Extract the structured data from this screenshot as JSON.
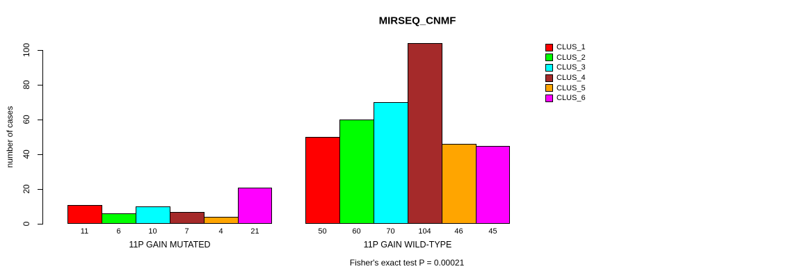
{
  "title": "MIRSEQ_CNMF",
  "footer": "Fisher's exact test P = 0.00021",
  "chart_data": {
    "type": "bar",
    "title": "MIRSEQ_CNMF",
    "ylabel": "number of cases",
    "xlabel": "",
    "ylim": [
      0,
      100
    ],
    "yticks": [
      0,
      20,
      40,
      60,
      80,
      100
    ],
    "grid": false,
    "legend_position": "right",
    "categories": [
      "11P GAIN MUTATED",
      "11P GAIN WILD-TYPE"
    ],
    "series": [
      {
        "name": "CLUS_1",
        "color": "#FF0000",
        "values": [
          11,
          50
        ]
      },
      {
        "name": "CLUS_2",
        "color": "#00FF00",
        "values": [
          6,
          60
        ]
      },
      {
        "name": "CLUS_3",
        "color": "#00FFFF",
        "values": [
          10,
          70
        ]
      },
      {
        "name": "CLUS_4",
        "color": "#A52A2A",
        "values": [
          7,
          104
        ]
      },
      {
        "name": "CLUS_5",
        "color": "#FFA500",
        "values": [
          4,
          46
        ]
      },
      {
        "name": "CLUS_6",
        "color": "#FF00FF",
        "values": [
          21,
          45
        ]
      }
    ],
    "bar_value_labels": [
      [
        "11",
        "6",
        "10",
        "7",
        "4",
        "21"
      ],
      [
        "50",
        "60",
        "70",
        "104",
        "46",
        "45"
      ]
    ],
    "annotation": "Fisher's exact test P = 0.00021"
  }
}
